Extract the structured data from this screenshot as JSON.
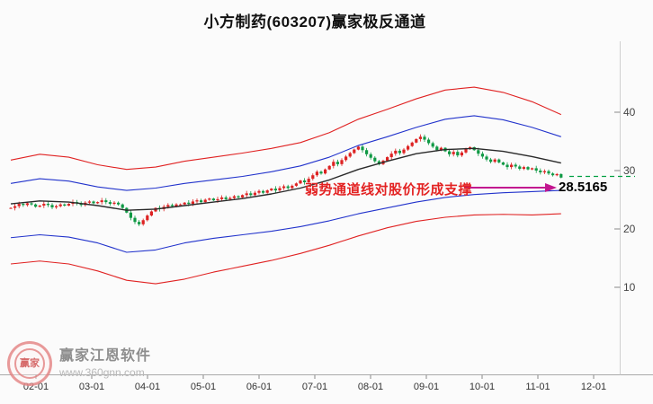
{
  "title": "小方制药(603207)赢家极反通道",
  "annotation": {
    "text": "弱势通道线对股价形成支撑",
    "value": "28.5165",
    "arrow_color": "#c2158f",
    "text_color": "#e32222"
  },
  "watermark": {
    "logo_text": "赢家",
    "brand": "赢家江恩软件",
    "url": "www.360gnn.com"
  },
  "chart_data": {
    "type": "candlestick",
    "title": "小方制药(603207)赢家极反通道",
    "x_ticks": [
      "02-01",
      "03-01",
      "04-01",
      "05-01",
      "06-01",
      "07-01",
      "08-01",
      "09-01",
      "10-01",
      "11-01",
      "12-01"
    ],
    "y_ticks": [
      10,
      20,
      30,
      40
    ],
    "ylim": [
      5,
      50
    ],
    "grid": false,
    "up_color": "#dd2222",
    "down_color": "#0f9944",
    "closes": [
      23.6,
      23.9,
      24.3,
      24.1,
      24.4,
      24.2,
      23.8,
      24.0,
      24.3,
      24.1,
      23.7,
      23.9,
      24.2,
      24.0,
      24.3,
      24.6,
      24.4,
      24.1,
      24.5,
      24.7,
      24.4,
      24.6,
      24.9,
      24.6,
      24.3,
      24.5,
      24.2,
      23.6,
      22.8,
      21.9,
      21.2,
      20.8,
      21.5,
      22.3,
      23.0,
      23.6,
      23.4,
      23.8,
      24.1,
      23.9,
      24.2,
      24.2,
      24.5,
      24.3,
      24.7,
      24.9,
      24.6,
      25.0,
      25.2,
      24.9,
      25.1,
      25.4,
      25.1,
      25.3,
      25.6,
      25.4,
      25.8,
      26.1,
      25.8,
      26.2,
      26.5,
      26.2,
      26.6,
      26.9,
      26.6,
      27.0,
      27.3,
      27.0,
      27.4,
      27.8,
      28.3,
      28.0,
      28.6,
      29.2,
      29.8,
      29.5,
      30.2,
      30.8,
      31.5,
      31.1,
      31.8,
      32.4,
      33.0,
      33.6,
      34.1,
      33.5,
      32.8,
      32.2,
      31.6,
      31.1,
      31.7,
      32.3,
      32.9,
      33.4,
      33.0,
      33.6,
      34.2,
      34.8,
      35.4,
      35.8,
      35.3,
      34.7,
      34.1,
      33.5,
      33.9,
      33.3,
      32.8,
      33.2,
      32.6,
      33.1,
      33.7,
      34.0,
      33.5,
      32.9,
      32.4,
      31.9,
      31.5,
      31.9,
      31.4,
      31.0,
      30.6,
      31.0,
      30.7,
      30.3,
      30.6,
      30.2,
      30.4,
      30.0,
      29.7,
      29.9,
      29.5,
      29.2,
      29.4,
      28.8
    ],
    "channels": {
      "sample_indices": [
        0,
        7,
        14,
        21,
        28,
        35,
        42,
        49,
        56,
        63,
        70,
        77,
        84,
        91,
        98,
        105,
        112,
        119,
        126,
        133
      ],
      "red_upper": [
        31.8,
        32.8,
        32.3,
        31.0,
        30.2,
        30.6,
        31.6,
        32.3,
        33.0,
        33.8,
        34.8,
        36.5,
        38.8,
        40.5,
        42.3,
        43.8,
        44.3,
        43.4,
        41.8,
        39.6
      ],
      "blue_upper": [
        27.8,
        28.6,
        28.2,
        27.2,
        26.6,
        27.0,
        27.8,
        28.4,
        29.0,
        29.8,
        30.8,
        32.3,
        34.3,
        35.8,
        37.4,
        38.8,
        39.4,
        38.7,
        37.4,
        35.8
      ],
      "middle": [
        24.3,
        24.8,
        24.6,
        24.0,
        23.2,
        23.4,
        24.0,
        24.6,
        25.2,
        26.0,
        27.0,
        28.4,
        30.2,
        31.6,
        32.9,
        33.6,
        33.8,
        33.3,
        32.4,
        31.3
      ],
      "blue_lower": [
        18.5,
        19.0,
        18.6,
        17.6,
        16.0,
        16.4,
        17.6,
        18.4,
        19.0,
        19.6,
        20.4,
        21.4,
        22.6,
        23.6,
        24.6,
        25.4,
        25.9,
        26.2,
        26.4,
        26.6
      ],
      "red_lower": [
        14.0,
        14.5,
        14.0,
        12.8,
        11.2,
        10.6,
        11.4,
        12.6,
        13.6,
        14.6,
        15.8,
        17.2,
        18.8,
        20.2,
        21.3,
        22.0,
        22.4,
        22.5,
        22.4,
        22.6
      ],
      "colors": {
        "outer": "#e02222",
        "inner": "#2233cc",
        "middle": "#2a2a2a"
      }
    },
    "support_line": {
      "price": 29.0,
      "style": "dashed",
      "color": "#00a044"
    }
  }
}
